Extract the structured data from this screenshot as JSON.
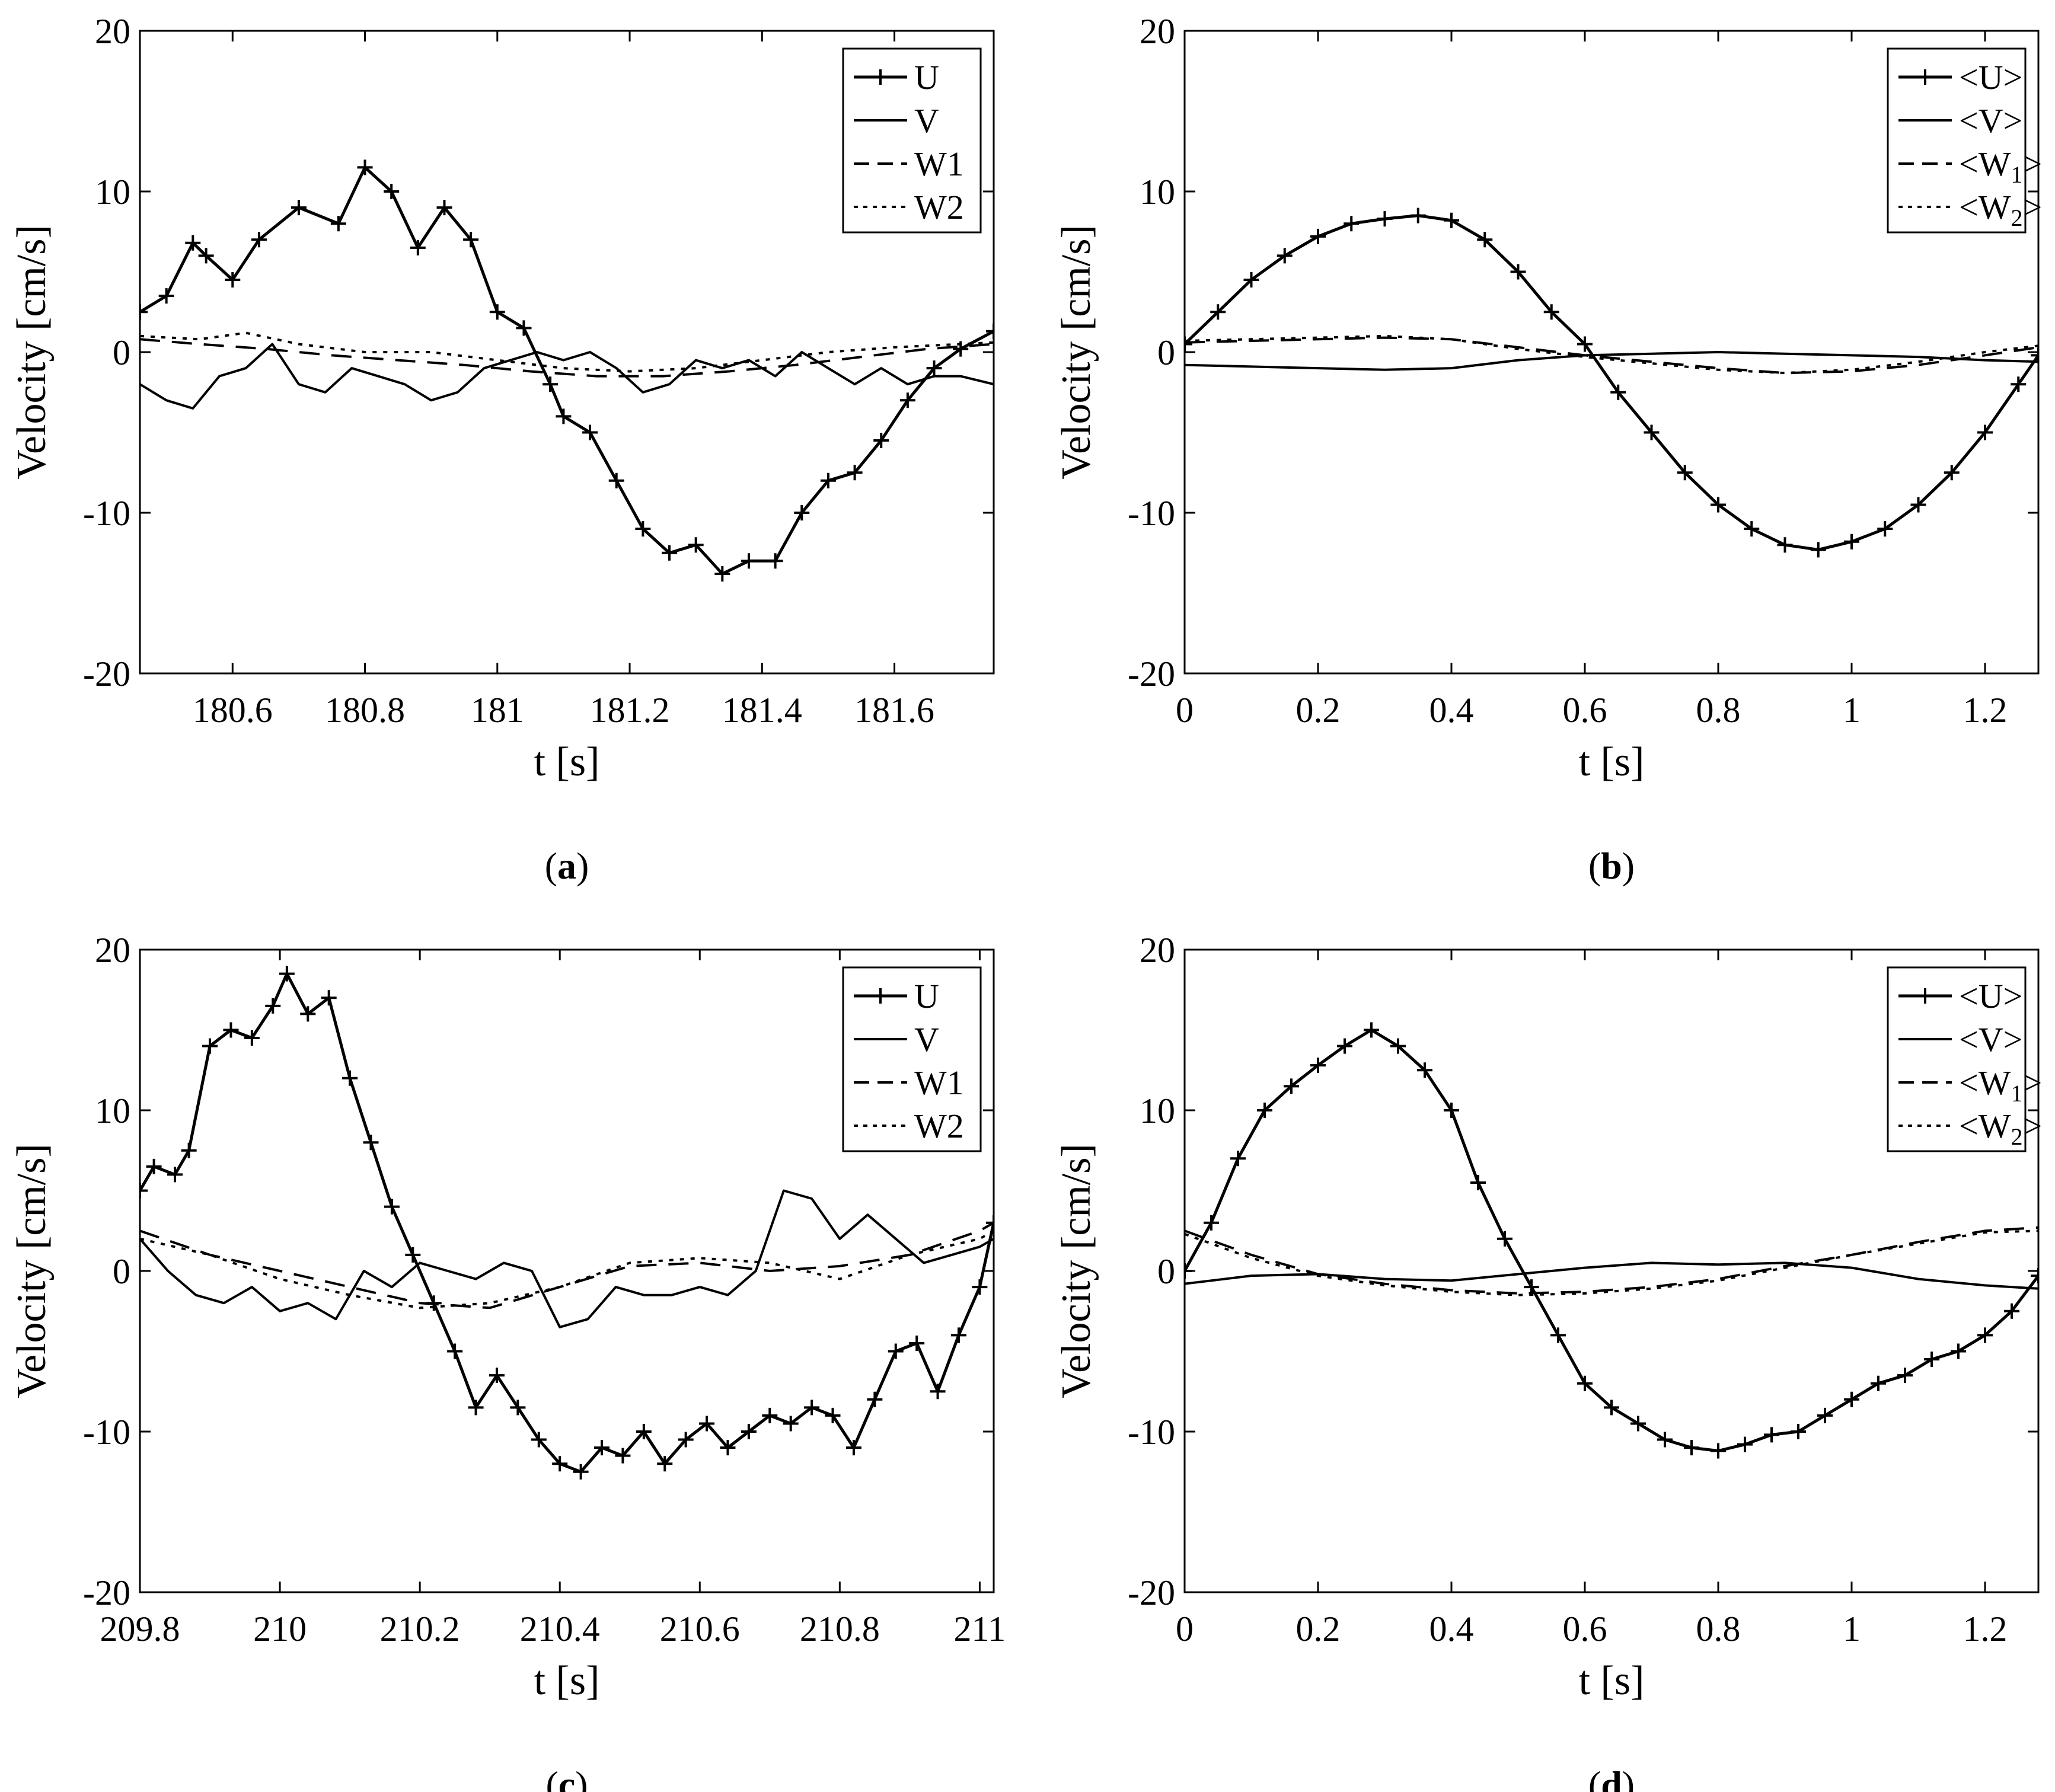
{
  "chart_data": [
    {
      "id": "a",
      "type": "line",
      "caption_letter": "a",
      "xlabel": "t [s]",
      "ylabel": "Velocity [cm/s]",
      "xlim": [
        180.46,
        181.75
      ],
      "ylim": [
        -20,
        20
      ],
      "xticks": [
        180.6,
        180.8,
        181,
        181.2,
        181.4,
        181.6
      ],
      "xtick_labels": [
        "180.6",
        "180.8",
        "181",
        "181.2",
        "181.4",
        "181.6"
      ],
      "yticks": [
        -20,
        -10,
        0,
        10,
        20
      ],
      "ytick_labels": [
        "-20",
        "-10",
        "0",
        "10",
        "20"
      ],
      "legend_position": "top-right",
      "legend": [
        {
          "label": "U",
          "style": "plus"
        },
        {
          "label": "V",
          "style": "solid"
        },
        {
          "label": "W1",
          "style": "dashed"
        },
        {
          "label": "W2",
          "style": "dotted"
        }
      ],
      "series": [
        {
          "name": "U",
          "style": "plus",
          "x": [
            180.46,
            180.5,
            180.54,
            180.56,
            180.6,
            180.64,
            180.7,
            180.76,
            180.8,
            180.84,
            180.88,
            180.92,
            180.96,
            181.0,
            181.04,
            181.08,
            181.1,
            181.14,
            181.18,
            181.22,
            181.26,
            181.3,
            181.34,
            181.38,
            181.42,
            181.46,
            181.5,
            181.54,
            181.58,
            181.62,
            181.66,
            181.7,
            181.75
          ],
          "y": [
            2.5,
            3.5,
            6.8,
            6,
            4.5,
            7,
            9,
            8,
            11.5,
            10,
            6.5,
            9,
            7,
            2.5,
            1.5,
            -2,
            -4,
            -5,
            -8,
            -11,
            -12.5,
            -12,
            -13.8,
            -13,
            -13,
            -10,
            -8,
            -7.5,
            -5.5,
            -3,
            -1,
            0.2,
            1.3
          ]
        },
        {
          "name": "V",
          "style": "solid",
          "x": [
            180.46,
            180.5,
            180.54,
            180.58,
            180.62,
            180.66,
            180.7,
            180.74,
            180.78,
            180.82,
            180.86,
            180.9,
            180.94,
            180.98,
            181.02,
            181.06,
            181.1,
            181.14,
            181.18,
            181.22,
            181.26,
            181.3,
            181.34,
            181.38,
            181.42,
            181.46,
            181.5,
            181.54,
            181.58,
            181.62,
            181.66,
            181.7,
            181.75
          ],
          "y": [
            -2,
            -3,
            -3.5,
            -1.5,
            -1,
            0.5,
            -2,
            -2.5,
            -1,
            -1.5,
            -2,
            -3,
            -2.5,
            -1,
            -0.5,
            0,
            -0.5,
            0,
            -1,
            -2.5,
            -2,
            -0.5,
            -1,
            -0.5,
            -1.5,
            0,
            -1,
            -2,
            -1,
            -2,
            -1.5,
            -1.5,
            -2
          ]
        },
        {
          "name": "W1",
          "style": "dashed",
          "x": [
            180.46,
            180.55,
            180.65,
            180.75,
            180.85,
            180.95,
            181.05,
            181.15,
            181.25,
            181.35,
            181.45,
            181.55,
            181.65,
            181.75
          ],
          "y": [
            0.8,
            0.5,
            0.2,
            -0.2,
            -0.5,
            -0.8,
            -1.2,
            -1.5,
            -1.5,
            -1.2,
            -0.8,
            -0.3,
            0.2,
            0.5
          ]
        },
        {
          "name": "W2",
          "style": "dotted",
          "x": [
            180.46,
            180.55,
            180.62,
            180.7,
            180.8,
            180.9,
            181.0,
            181.1,
            181.2,
            181.3,
            181.4,
            181.5,
            181.6,
            181.7,
            181.75
          ],
          "y": [
            1,
            0.8,
            1.2,
            0.5,
            0,
            0,
            -0.5,
            -1,
            -1.2,
            -1,
            -0.5,
            0,
            0.3,
            0.5,
            0.6
          ]
        }
      ]
    },
    {
      "id": "b",
      "type": "line",
      "caption_letter": "b",
      "xlabel": "t [s]",
      "ylabel": "Velocity [cm/s]",
      "xlim": [
        0,
        1.28
      ],
      "ylim": [
        -20,
        20
      ],
      "xticks": [
        0,
        0.2,
        0.4,
        0.6,
        0.8,
        1,
        1.2
      ],
      "xtick_labels": [
        "0",
        "0.2",
        "0.4",
        "0.6",
        "0.8",
        "1",
        "1.2"
      ],
      "yticks": [
        -20,
        -10,
        0,
        10,
        20
      ],
      "ytick_labels": [
        "-20",
        "-10",
        "0",
        "10",
        "20"
      ],
      "legend_position": "top-right",
      "legend": [
        {
          "label": "<U>",
          "style": "plus"
        },
        {
          "label": "<V>",
          "style": "solid"
        },
        {
          "label": "<W",
          "sub": "1",
          "suffix": ">",
          "style": "dashed"
        },
        {
          "label": "<W",
          "sub": "2",
          "suffix": ">",
          "style": "dotted"
        }
      ],
      "series": [
        {
          "name": "<U>",
          "style": "plus",
          "x": [
            0,
            0.05,
            0.1,
            0.15,
            0.2,
            0.25,
            0.3,
            0.35,
            0.4,
            0.45,
            0.5,
            0.55,
            0.6,
            0.65,
            0.7,
            0.75,
            0.8,
            0.85,
            0.9,
            0.95,
            1.0,
            1.05,
            1.1,
            1.15,
            1.2,
            1.25,
            1.28
          ],
          "y": [
            0.5,
            2.5,
            4.5,
            6,
            7.2,
            8,
            8.3,
            8.5,
            8.2,
            7,
            5,
            2.5,
            0.5,
            -2.5,
            -5,
            -7.5,
            -9.5,
            -11,
            -12,
            -12.3,
            -11.8,
            -11,
            -9.5,
            -7.5,
            -5,
            -2,
            -0.2
          ]
        },
        {
          "name": "<V>",
          "style": "solid",
          "x": [
            0,
            0.1,
            0.2,
            0.3,
            0.4,
            0.5,
            0.6,
            0.7,
            0.8,
            0.9,
            1.0,
            1.1,
            1.2,
            1.28
          ],
          "y": [
            -0.8,
            -0.9,
            -1,
            -1.1,
            -1,
            -0.5,
            -0.2,
            -0.1,
            0,
            -0.1,
            -0.2,
            -0.3,
            -0.5,
            -0.6
          ]
        },
        {
          "name": "<W1>",
          "style": "dashed",
          "x": [
            0,
            0.1,
            0.2,
            0.3,
            0.4,
            0.5,
            0.6,
            0.7,
            0.8,
            0.9,
            1.0,
            1.1,
            1.2,
            1.28
          ],
          "y": [
            0.6,
            0.7,
            0.8,
            0.9,
            0.8,
            0.3,
            -0.2,
            -0.6,
            -1,
            -1.3,
            -1.2,
            -0.8,
            -0.2,
            0.3
          ]
        },
        {
          "name": "<W2>",
          "style": "dotted",
          "x": [
            0,
            0.1,
            0.2,
            0.3,
            0.4,
            0.5,
            0.6,
            0.7,
            0.8,
            0.9,
            1.0,
            1.1,
            1.2,
            1.28
          ],
          "y": [
            0.7,
            0.8,
            0.9,
            1,
            0.8,
            0.2,
            -0.3,
            -0.7,
            -1.1,
            -1.3,
            -1.1,
            -0.6,
            0,
            0.4
          ]
        }
      ]
    },
    {
      "id": "c",
      "type": "line",
      "caption_letter": "c",
      "xlabel": "t [s]",
      "ylabel": "Velocity [cm/s]",
      "xlim": [
        209.8,
        211.02
      ],
      "ylim": [
        -20,
        20
      ],
      "xticks": [
        209.8,
        210,
        210.2,
        210.4,
        210.6,
        210.8,
        211
      ],
      "xtick_labels": [
        "209.8",
        "210",
        "210.2",
        "210.4",
        "210.6",
        "210.8",
        "211"
      ],
      "yticks": [
        -20,
        -10,
        0,
        10,
        20
      ],
      "ytick_labels": [
        "-20",
        "-10",
        "0",
        "10",
        "20"
      ],
      "legend_position": "top-right",
      "legend": [
        {
          "label": "U",
          "style": "plus"
        },
        {
          "label": "V",
          "style": "solid"
        },
        {
          "label": "W1",
          "style": "dashed"
        },
        {
          "label": "W2",
          "style": "dotted"
        }
      ],
      "series": [
        {
          "name": "U",
          "style": "plus",
          "x": [
            209.8,
            209.82,
            209.85,
            209.87,
            209.9,
            209.93,
            209.96,
            209.99,
            210.01,
            210.04,
            210.07,
            210.1,
            210.13,
            210.16,
            210.19,
            210.22,
            210.25,
            210.28,
            210.31,
            210.34,
            210.37,
            210.4,
            210.43,
            210.46,
            210.49,
            210.52,
            210.55,
            210.58,
            210.61,
            210.64,
            210.67,
            210.7,
            210.73,
            210.76,
            210.79,
            210.82,
            210.85,
            210.88,
            210.91,
            210.94,
            210.97,
            211.0,
            211.02
          ],
          "y": [
            5,
            6.5,
            6,
            7.5,
            14,
            15,
            14.5,
            16.5,
            18.5,
            16,
            17,
            12,
            8,
            4,
            1,
            -2,
            -5,
            -8.5,
            -6.5,
            -8.5,
            -10.5,
            -12,
            -12.5,
            -11,
            -11.5,
            -10,
            -12,
            -10.5,
            -9.5,
            -11,
            -10,
            -9,
            -9.5,
            -8.5,
            -9,
            -11,
            -8,
            -5,
            -4.5,
            -7.5,
            -4,
            -1,
            3
          ]
        },
        {
          "name": "V",
          "style": "solid",
          "x": [
            209.8,
            209.84,
            209.88,
            209.92,
            209.96,
            210.0,
            210.04,
            210.08,
            210.12,
            210.16,
            210.2,
            210.24,
            210.28,
            210.32,
            210.36,
            210.4,
            210.44,
            210.48,
            210.52,
            210.56,
            210.6,
            210.64,
            210.68,
            210.72,
            210.76,
            210.8,
            210.84,
            210.88,
            210.92,
            210.96,
            211.0,
            211.02
          ],
          "y": [
            2,
            0,
            -1.5,
            -2,
            -1,
            -2.5,
            -2,
            -3,
            0,
            -1,
            0.5,
            0,
            -0.5,
            0.5,
            0,
            -3.5,
            -3,
            -1,
            -1.5,
            -1.5,
            -1,
            -1.5,
            0,
            5,
            4.5,
            2,
            3.5,
            2,
            0.5,
            1,
            1.5,
            2
          ]
        },
        {
          "name": "W1",
          "style": "dashed",
          "x": [
            209.8,
            209.9,
            210.0,
            210.1,
            210.2,
            210.3,
            210.4,
            210.5,
            210.6,
            210.7,
            210.8,
            210.9,
            211.0,
            211.02
          ],
          "y": [
            2.5,
            1,
            0,
            -1,
            -2,
            -2.3,
            -1,
            0.3,
            0.5,
            0,
            0.3,
            1,
            2.5,
            3
          ]
        },
        {
          "name": "W2",
          "style": "dotted",
          "x": [
            209.8,
            209.9,
            210.0,
            210.1,
            210.2,
            210.3,
            210.4,
            210.5,
            210.6,
            210.7,
            210.8,
            210.9,
            211.0,
            211.02
          ],
          "y": [
            2,
            1,
            -0.5,
            -1.5,
            -2.3,
            -2,
            -1,
            0.5,
            0.8,
            0.5,
            -0.5,
            1,
            2,
            2.5
          ]
        }
      ]
    },
    {
      "id": "d",
      "type": "line",
      "caption_letter": "d",
      "xlabel": "t [s]",
      "ylabel": "Velocity [cm/s]",
      "xlim": [
        0,
        1.28
      ],
      "ylim": [
        -20,
        20
      ],
      "xticks": [
        0,
        0.2,
        0.4,
        0.6,
        0.8,
        1,
        1.2
      ],
      "xtick_labels": [
        "0",
        "0.2",
        "0.4",
        "0.6",
        "0.8",
        "1",
        "1.2"
      ],
      "yticks": [
        -20,
        -10,
        0,
        10,
        20
      ],
      "ytick_labels": [
        "-20",
        "-10",
        "0",
        "10",
        "20"
      ],
      "legend_position": "top-right",
      "legend": [
        {
          "label": "<U>",
          "style": "plus"
        },
        {
          "label": "<V>",
          "style": "solid"
        },
        {
          "label": "<W",
          "sub": "1",
          "suffix": ">",
          "style": "dashed"
        },
        {
          "label": "<W",
          "sub": "2",
          "suffix": ">",
          "style": "dotted"
        }
      ],
      "series": [
        {
          "name": "<U>",
          "style": "plus",
          "x": [
            0,
            0.04,
            0.08,
            0.12,
            0.16,
            0.2,
            0.24,
            0.28,
            0.32,
            0.36,
            0.4,
            0.44,
            0.48,
            0.52,
            0.56,
            0.6,
            0.64,
            0.68,
            0.72,
            0.76,
            0.8,
            0.84,
            0.88,
            0.92,
            0.96,
            1.0,
            1.04,
            1.08,
            1.12,
            1.16,
            1.2,
            1.24,
            1.28
          ],
          "y": [
            0,
            3,
            7,
            10,
            11.5,
            12.8,
            14,
            15,
            14,
            12.5,
            10,
            5.5,
            2,
            -1,
            -4,
            -7,
            -8.5,
            -9.5,
            -10.5,
            -11,
            -11.2,
            -10.8,
            -10.2,
            -10,
            -9,
            -8,
            -7,
            -6.5,
            -5.5,
            -5,
            -4,
            -2.5,
            -0.3
          ]
        },
        {
          "name": "<V>",
          "style": "solid",
          "x": [
            0,
            0.1,
            0.2,
            0.3,
            0.4,
            0.5,
            0.6,
            0.7,
            0.8,
            0.9,
            1.0,
            1.1,
            1.2,
            1.28
          ],
          "y": [
            -0.8,
            -0.3,
            -0.2,
            -0.5,
            -0.6,
            -0.2,
            0.2,
            0.5,
            0.4,
            0.5,
            0.2,
            -0.5,
            -0.9,
            -1.1
          ]
        },
        {
          "name": "<W1>",
          "style": "dashed",
          "x": [
            0,
            0.1,
            0.2,
            0.3,
            0.4,
            0.5,
            0.6,
            0.7,
            0.8,
            0.9,
            1.0,
            1.1,
            1.2,
            1.28
          ],
          "y": [
            2.5,
            1,
            -0.2,
            -0.8,
            -1.2,
            -1.4,
            -1.3,
            -1,
            -0.5,
            0.3,
            1,
            1.8,
            2.5,
            2.7
          ]
        },
        {
          "name": "<W2>",
          "style": "dotted",
          "x": [
            0,
            0.1,
            0.2,
            0.3,
            0.4,
            0.5,
            0.6,
            0.7,
            0.8,
            0.9,
            1.0,
            1.1,
            1.2,
            1.28
          ],
          "y": [
            2.3,
            0.8,
            -0.3,
            -0.9,
            -1.3,
            -1.5,
            -1.4,
            -1.1,
            -0.6,
            0.2,
            1,
            1.7,
            2.4,
            2.5
          ]
        }
      ]
    }
  ]
}
